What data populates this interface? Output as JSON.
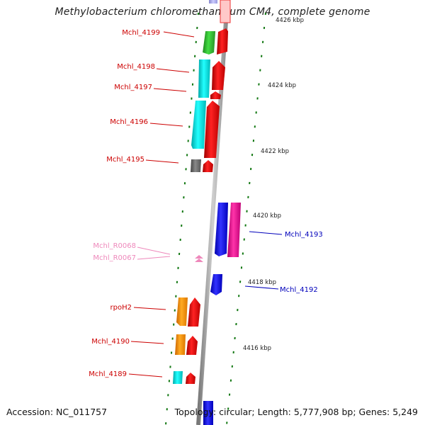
{
  "title": "Methylobacterium chloromethanicum CM4, complete genome",
  "footer": {
    "accession": "Accession: NC_011757",
    "stats": "Topology: circular; Length: 5,777,908 bp; Genes: 5,249"
  },
  "colors": {
    "green": "#33bb33",
    "cyan": "#00eeee",
    "red": "#ee1111",
    "gray": "#666666",
    "blue": "#1111ee",
    "magenta": "#ee1199",
    "orange": "#ff9900",
    "pink": "#ee88bb",
    "label_red": "#cc0000",
    "label_blue": "#0000bb",
    "label_pink": "#ee88bb",
    "tick_green": "#117711"
  },
  "scale_labels": [
    "4426 kbp",
    "4424 kbp",
    "4422 kbp",
    "4420 kbp",
    "4418 kbp",
    "4416 kbp"
  ],
  "gene_labels": {
    "mchl_4199": "Mchl_4199",
    "mchl_4198": "Mchl_4198",
    "mchl_4197": "Mchl_4197",
    "mchl_4196": "Mchl_4196",
    "mchl_4195": "Mchl_4195",
    "mchl_r0068": "Mchl_R0068",
    "mchl_r0067": "Mchl_R0067",
    "rpoh2": "rpoH2",
    "mchl_4190": "Mchl_4190",
    "mchl_4189": "Mchl_4189",
    "mchl_4193": "Mchl_4193",
    "mchl_4192": "Mchl_4192"
  }
}
